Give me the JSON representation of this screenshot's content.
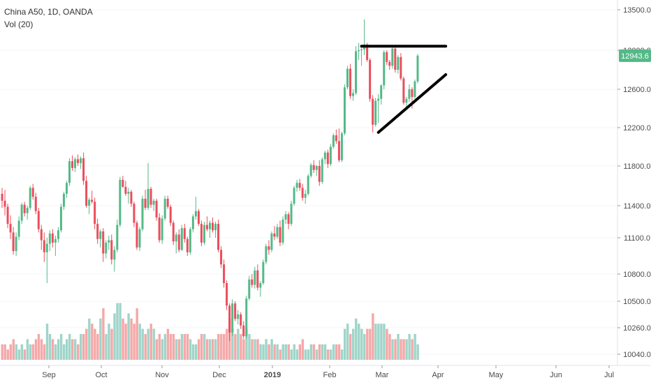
{
  "legend": {
    "symbol": "China A50, 1D, OANDA",
    "volume": "Vol (20)"
  },
  "last_price_label": "12943.6",
  "colors": {
    "up": "#53b987",
    "down": "#eb4d5c",
    "vol_up": "#9fd5c9",
    "vol_down": "#f5a8a8",
    "axis_text": "#4a4a4a",
    "label_bg": "#53b987",
    "trendline": "#000000"
  },
  "chart_data": {
    "type": "candlestick",
    "title": "China A50, 1D, OANDA",
    "y_ticks": [
      10040,
      10260,
      10500,
      10800,
      11100,
      11400,
      11800,
      12200,
      12600,
      13000,
      13500
    ],
    "y_tick_labels": [
      "10040.0",
      "10260.0",
      "10500.0",
      "10800.0",
      "11100.0",
      "11400.0",
      "11800.0",
      "12200.0",
      "12600.0",
      "13000.0",
      "13500.0"
    ],
    "x_tick_labels": [
      "Sep",
      "Oct",
      "Nov",
      "Dec",
      "2019",
      "Feb",
      "Mar",
      "Apr",
      "May",
      "Jun",
      "Jul"
    ],
    "price_range": [
      9950,
      13750
    ],
    "trendlines": [
      {
        "name": "resistance",
        "from": {
          "bar": 128,
          "price": 13050
        },
        "to": {
          "bar": 158,
          "price": 13050
        }
      },
      {
        "name": "support",
        "from": {
          "bar": 134,
          "price": 12150
        },
        "to": {
          "bar": 158,
          "price": 12750
        }
      }
    ],
    "volume_indicator": "Vol (20)",
    "candles": [
      [
        11520,
        11580,
        11380,
        11450,
        3
      ],
      [
        11450,
        11560,
        11310,
        11390,
        3
      ],
      [
        11390,
        11420,
        11190,
        11230,
        2
      ],
      [
        11230,
        11310,
        11090,
        11150,
        3
      ],
      [
        11150,
        11200,
        10960,
        10990,
        4
      ],
      [
        10990,
        11150,
        10950,
        11110,
        3
      ],
      [
        11110,
        11300,
        11080,
        11260,
        2
      ],
      [
        11260,
        11430,
        11230,
        11410,
        3
      ],
      [
        11410,
        11440,
        11300,
        11330,
        2
      ],
      [
        11330,
        11400,
        11270,
        11380,
        4
      ],
      [
        11380,
        11600,
        11360,
        11580,
        3
      ],
      [
        11580,
        11620,
        11460,
        11490,
        3
      ],
      [
        11490,
        11530,
        11320,
        11350,
        4
      ],
      [
        11350,
        11380,
        11150,
        11180,
        5
      ],
      [
        11180,
        11220,
        11000,
        11080,
        4
      ],
      [
        11080,
        11150,
        10900,
        10980,
        3
      ],
      [
        10980,
        11100,
        10700,
        11050,
        7
      ],
      [
        11050,
        11170,
        10990,
        11140,
        5
      ],
      [
        11140,
        11180,
        11020,
        11060,
        4
      ],
      [
        11060,
        11120,
        10950,
        11090,
        3
      ],
      [
        11090,
        11200,
        11060,
        11170,
        4
      ],
      [
        11170,
        11420,
        11150,
        11390,
        5
      ],
      [
        11390,
        11540,
        11360,
        11520,
        3
      ],
      [
        11520,
        11650,
        11480,
        11630,
        4
      ],
      [
        11630,
        11880,
        11600,
        11850,
        5
      ],
      [
        11850,
        11910,
        11750,
        11780,
        4
      ],
      [
        11780,
        11890,
        11740,
        11870,
        4
      ],
      [
        11870,
        11920,
        11800,
        11830,
        3
      ],
      [
        11830,
        11900,
        11770,
        11880,
        5
      ],
      [
        11880,
        11940,
        11610,
        11650,
        5
      ],
      [
        11650,
        11700,
        11380,
        11400,
        6
      ],
      [
        11400,
        11480,
        11320,
        11460,
        8
      ],
      [
        11460,
        11550,
        11420,
        11440,
        7
      ],
      [
        11440,
        11480,
        11180,
        11230,
        6
      ],
      [
        11230,
        11280,
        11050,
        11090,
        5
      ],
      [
        11090,
        11180,
        11020,
        11160,
        8
      ],
      [
        11160,
        11190,
        10900,
        10970,
        10
      ],
      [
        10970,
        11080,
        10930,
        11060,
        5
      ],
      [
        11060,
        11120,
        11000,
        11080,
        7
      ],
      [
        11080,
        11130,
        10880,
        10920,
        6
      ],
      [
        10920,
        11030,
        10820,
        11000,
        9
      ],
      [
        11000,
        11270,
        10980,
        11220,
        11
      ],
      [
        11220,
        11690,
        11200,
        11660,
        11
      ],
      [
        11660,
        11700,
        11580,
        11590,
        8
      ],
      [
        11590,
        11650,
        11500,
        11520,
        7
      ],
      [
        11520,
        11580,
        11420,
        11540,
        9
      ],
      [
        11540,
        11560,
        11390,
        11420,
        8
      ],
      [
        11420,
        11440,
        11200,
        11240,
        7
      ],
      [
        11240,
        11260,
        11000,
        11020,
        10
      ],
      [
        11020,
        11200,
        10990,
        11180,
        7
      ],
      [
        11180,
        11500,
        11160,
        11470,
        6
      ],
      [
        11470,
        11560,
        11360,
        11380,
        5
      ],
      [
        11380,
        11830,
        11360,
        11570,
        6
      ],
      [
        11570,
        11590,
        11380,
        11410,
        7
      ],
      [
        11410,
        11470,
        11350,
        11450,
        6
      ],
      [
        11450,
        11470,
        11260,
        11290,
        4
      ],
      [
        11290,
        11330,
        11060,
        11080,
        5
      ],
      [
        11080,
        11310,
        11050,
        11280,
        4
      ],
      [
        11280,
        11500,
        11260,
        11470,
        5
      ],
      [
        11470,
        11500,
        11370,
        11390,
        6
      ],
      [
        11390,
        11410,
        11210,
        11240,
        5
      ],
      [
        11240,
        11260,
        11040,
        11070,
        5
      ],
      [
        11070,
        11150,
        10970,
        11130,
        4
      ],
      [
        11130,
        11180,
        10980,
        11000,
        4
      ],
      [
        11000,
        11220,
        10990,
        11190,
        5
      ],
      [
        11190,
        11230,
        11060,
        11090,
        5
      ],
      [
        11090,
        11110,
        10950,
        10980,
        5
      ],
      [
        10980,
        11200,
        10960,
        11180,
        4
      ],
      [
        11180,
        11320,
        11150,
        11300,
        3
      ],
      [
        11300,
        11490,
        11270,
        11350,
        3
      ],
      [
        11350,
        11370,
        11210,
        11230,
        4
      ],
      [
        11230,
        11260,
        11030,
        11060,
        5
      ],
      [
        11060,
        11250,
        11040,
        11220,
        5
      ],
      [
        11220,
        11300,
        11160,
        11180,
        4
      ],
      [
        11180,
        11260,
        11100,
        11240,
        4
      ],
      [
        11240,
        11290,
        11150,
        11170,
        4
      ],
      [
        11170,
        11250,
        11100,
        11230,
        4
      ],
      [
        11230,
        11270,
        10980,
        11000,
        5
      ],
      [
        11000,
        11030,
        10850,
        10880,
        5
      ],
      [
        10880,
        10920,
        10650,
        10700,
        5
      ],
      [
        10700,
        10730,
        10420,
        10460,
        6
      ],
      [
        10460,
        10480,
        10150,
        10220,
        8
      ],
      [
        10220,
        10520,
        10190,
        10480,
        6
      ],
      [
        10480,
        10500,
        10320,
        10340,
        5
      ],
      [
        10340,
        10420,
        10290,
        10380,
        6
      ],
      [
        10380,
        10400,
        10250,
        10280,
        5
      ],
      [
        10280,
        10320,
        10170,
        10190,
        4
      ],
      [
        10190,
        10560,
        10170,
        10530,
        6
      ],
      [
        10530,
        10780,
        10510,
        10740,
        5
      ],
      [
        10740,
        10800,
        10650,
        10680,
        4
      ],
      [
        10680,
        10860,
        10640,
        10830,
        4
      ],
      [
        10830,
        10880,
        10620,
        10650,
        4
      ],
      [
        10650,
        10720,
        10550,
        10700,
        3
      ],
      [
        10700,
        10920,
        10680,
        10900,
        3
      ],
      [
        10900,
        11050,
        10880,
        11030,
        4
      ],
      [
        11030,
        11080,
        10960,
        11000,
        3
      ],
      [
        11000,
        11160,
        10980,
        11140,
        4
      ],
      [
        11140,
        11210,
        11080,
        11110,
        3
      ],
      [
        11110,
        11230,
        11090,
        11200,
        3
      ],
      [
        11200,
        11260,
        11030,
        11060,
        2
      ],
      [
        11060,
        11300,
        11040,
        11270,
        3
      ],
      [
        11270,
        11350,
        11230,
        11320,
        3
      ],
      [
        11320,
        11340,
        11180,
        11230,
        3
      ],
      [
        11230,
        11450,
        11210,
        11420,
        2
      ],
      [
        11420,
        11600,
        11400,
        11580,
        3
      ],
      [
        11580,
        11660,
        11540,
        11630,
        2
      ],
      [
        11630,
        11670,
        11550,
        11580,
        3
      ],
      [
        11580,
        11620,
        11450,
        11480,
        4
      ],
      [
        11480,
        11560,
        11420,
        11520,
        2
      ],
      [
        11520,
        11720,
        11500,
        11700,
        2
      ],
      [
        11700,
        11830,
        11680,
        11810,
        3
      ],
      [
        11810,
        11860,
        11730,
        11760,
        3
      ],
      [
        11760,
        11810,
        11700,
        11800,
        2
      ],
      [
        11800,
        11860,
        11600,
        11640,
        3
      ],
      [
        11640,
        11890,
        11620,
        11870,
        3
      ],
      [
        11870,
        11960,
        11820,
        11940,
        3
      ],
      [
        11940,
        11970,
        11780,
        11820,
        2
      ],
      [
        11820,
        12030,
        11800,
        12000,
        2
      ],
      [
        12000,
        12140,
        11980,
        12120,
        3
      ],
      [
        12120,
        12180,
        12030,
        12060,
        3
      ],
      [
        12060,
        12190,
        11840,
        11860,
        3
      ],
      [
        11860,
        12160,
        11840,
        12140,
        2
      ],
      [
        12140,
        12650,
        12120,
        12620,
        6
      ],
      [
        12620,
        12840,
        12600,
        12810,
        7
      ],
      [
        12810,
        12860,
        12500,
        12530,
        5
      ],
      [
        12530,
        12600,
        12480,
        12560,
        6
      ],
      [
        12560,
        13050,
        12540,
        12990,
        8
      ],
      [
        12990,
        13090,
        12900,
        13000,
        7
      ],
      [
        13000,
        13050,
        12840,
        13010,
        6
      ],
      [
        13010,
        13380,
        12950,
        13070,
        5
      ],
      [
        13070,
        13090,
        12880,
        12900,
        6
      ],
      [
        12900,
        12920,
        12470,
        12500,
        6
      ],
      [
        12500,
        12540,
        12150,
        12230,
        9
      ],
      [
        12230,
        12510,
        12210,
        12480,
        7
      ],
      [
        12480,
        12550,
        12250,
        12500,
        7
      ],
      [
        12500,
        12650,
        12440,
        12640,
        7
      ],
      [
        12640,
        13000,
        12600,
        12980,
        7
      ],
      [
        12980,
        13000,
        12850,
        12880,
        6
      ],
      [
        12880,
        12900,
        12800,
        12840,
        5
      ],
      [
        12840,
        13050,
        12810,
        13020,
        4
      ],
      [
        13020,
        13050,
        12770,
        12800,
        4
      ],
      [
        12800,
        12950,
        12760,
        12930,
        5
      ],
      [
        12930,
        12970,
        12690,
        12710,
        4
      ],
      [
        12710,
        12730,
        12440,
        12460,
        4
      ],
      [
        12460,
        12520,
        12400,
        12500,
        4
      ],
      [
        12500,
        12650,
        12470,
        12600,
        5
      ],
      [
        12600,
        12620,
        12400,
        12520,
        4
      ],
      [
        12520,
        12700,
        12500,
        12680,
        5
      ],
      [
        12680,
        12960,
        12660,
        12944,
        3
      ]
    ]
  }
}
